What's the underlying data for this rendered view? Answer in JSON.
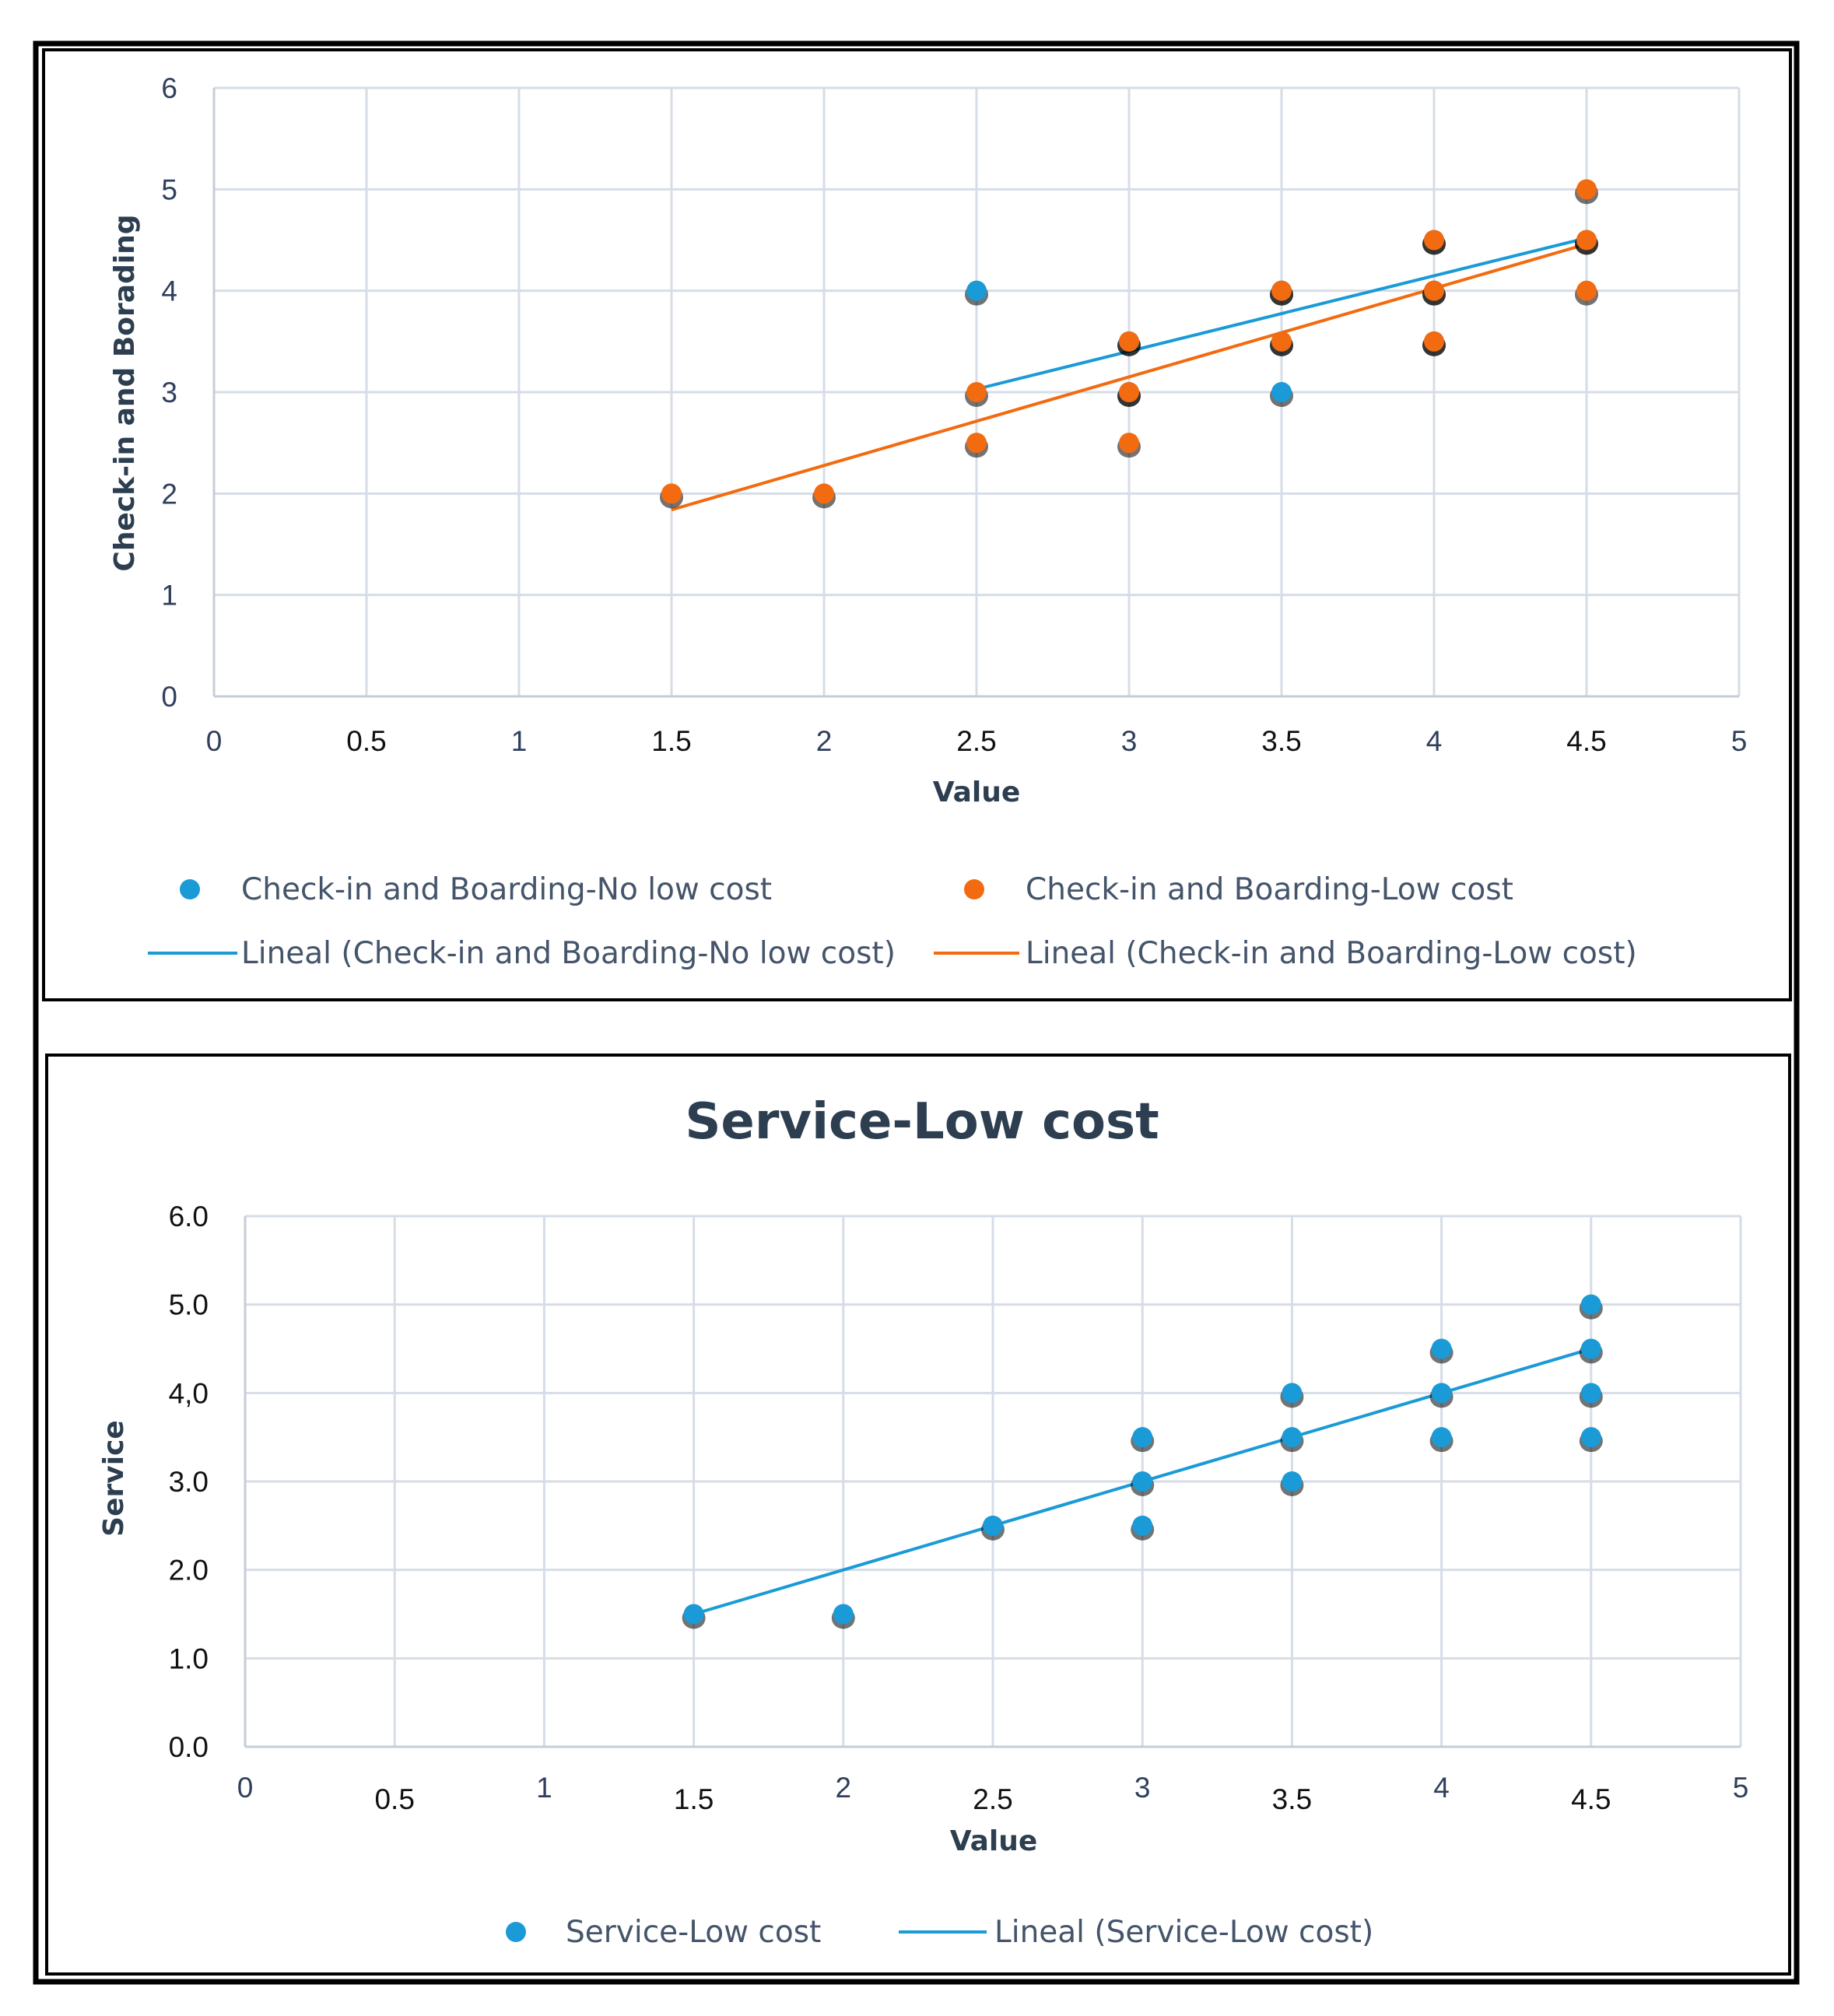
{
  "colors": {
    "blue": "#1a9ad6",
    "orange": "#f26b11",
    "grid": "#d6dde6",
    "frame": "#000000",
    "tick_text": "#2f3f5c"
  },
  "chart_data": [
    {
      "type": "scatter",
      "title": "",
      "xlabel": "Value",
      "ylabel": "Check-in and Borading",
      "xlim": [
        0,
        5
      ],
      "ylim": [
        0,
        6
      ],
      "x_ticks": [
        "0",
        "0.5",
        "1",
        "1.5",
        "2",
        "2.5",
        "3",
        "3.5",
        "4",
        "4.5",
        "5"
      ],
      "y_ticks": [
        "0",
        "1",
        "2",
        "3",
        "4",
        "5",
        "6"
      ],
      "grid": true,
      "legend_position": "bottom",
      "series": [
        {
          "name": "Check-in and Boarding-No low cost",
          "kind": "scatter",
          "color": "#1a9ad6",
          "points": [
            [
              2.5,
              4
            ],
            [
              3,
              3
            ],
            [
              3,
              3.5
            ],
            [
              3.5,
              3
            ],
            [
              3.5,
              3.5
            ],
            [
              3.5,
              4
            ],
            [
              4,
              3.5
            ],
            [
              4,
              4
            ],
            [
              4,
              4.5
            ],
            [
              4.5,
              4.5
            ]
          ]
        },
        {
          "name": "Check-in and Boarding-Low cost",
          "kind": "scatter",
          "color": "#f26b11",
          "points": [
            [
              1.5,
              2
            ],
            [
              2,
              2
            ],
            [
              2.5,
              2.5
            ],
            [
              2.5,
              3
            ],
            [
              3,
              2.5
            ],
            [
              3,
              3
            ],
            [
              3,
              3.5
            ],
            [
              3.5,
              3.5
            ],
            [
              3.5,
              4
            ],
            [
              4,
              3.5
            ],
            [
              4,
              4
            ],
            [
              4,
              4.5
            ],
            [
              4.5,
              4
            ],
            [
              4.5,
              4.5
            ],
            [
              4.5,
              5
            ]
          ]
        },
        {
          "name": "Lineal (Check-in and Boarding-No low cost)",
          "kind": "line",
          "color": "#1a9ad6",
          "points": [
            [
              2.5,
              3.03
            ],
            [
              4.5,
              4.52
            ]
          ]
        },
        {
          "name": "Lineal (Check-in and Boarding-Low cost)",
          "kind": "line",
          "color": "#f26b11",
          "points": [
            [
              1.5,
              1.84
            ],
            [
              4.5,
              4.46
            ]
          ]
        }
      ],
      "legend": [
        {
          "label": "Check-in and Boarding-No low cost",
          "marker": "dot",
          "color": "#1a9ad6"
        },
        {
          "label": "Check-in and Boarding-Low cost",
          "marker": "dot",
          "color": "#f26b11"
        },
        {
          "label": "Lineal (Check-in and Boarding-No low cost)",
          "marker": "line",
          "color": "#1a9ad6"
        },
        {
          "label": "Lineal (Check-in and Boarding-Low cost)",
          "marker": "line",
          "color": "#f26b11"
        }
      ]
    },
    {
      "type": "scatter",
      "title": "Service-Low cost",
      "xlabel": "Value",
      "ylabel": "Service",
      "xlim": [
        0,
        5
      ],
      "ylim": [
        0,
        6
      ],
      "x_ticks": [
        "0",
        "0.5",
        "1",
        "1.5",
        "2",
        "2.5",
        "3",
        "3.5",
        "4",
        "4.5",
        "5"
      ],
      "y_ticks": [
        "0.0",
        "1.0",
        "2.0",
        "3.0",
        "4,0",
        "5.0",
        "6.0"
      ],
      "grid": true,
      "legend_position": "bottom",
      "series": [
        {
          "name": "Service-Low cost",
          "kind": "scatter",
          "color": "#1a9ad6",
          "points": [
            [
              1.5,
              1.5
            ],
            [
              2,
              1.5
            ],
            [
              2.5,
              2.5
            ],
            [
              3,
              2.5
            ],
            [
              3,
              3
            ],
            [
              3,
              3.5
            ],
            [
              3.5,
              3
            ],
            [
              3.5,
              3.5
            ],
            [
              3.5,
              4
            ],
            [
              4,
              3.5
            ],
            [
              4,
              4
            ],
            [
              4,
              4.5
            ],
            [
              4.5,
              3.5
            ],
            [
              4.5,
              4
            ],
            [
              4.5,
              4.5
            ],
            [
              4.5,
              5
            ]
          ]
        },
        {
          "name": "Lineal (Service-Low cost)",
          "kind": "line",
          "color": "#1a9ad6",
          "points": [
            [
              1.5,
              1.5
            ],
            [
              4.5,
              4.5
            ]
          ]
        }
      ],
      "legend": [
        {
          "label": "Service-Low cost",
          "marker": "dot",
          "color": "#1a9ad6"
        },
        {
          "label": "Lineal (Service-Low cost)",
          "marker": "line",
          "color": "#1a9ad6"
        }
      ]
    }
  ]
}
